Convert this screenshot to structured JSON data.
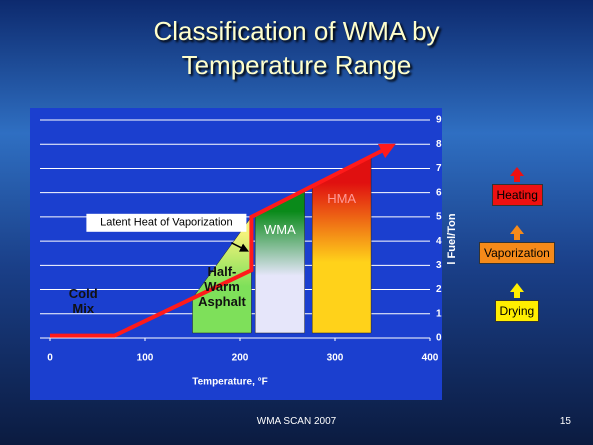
{
  "title": "Classification of WMA by Temperature Range",
  "footer": "WMA SCAN 2007",
  "page_number": "15",
  "chart_data": {
    "type": "line",
    "x_label": "Temperature, °F",
    "y_label": "l Fuel/Ton",
    "xlim": [
      0,
      400
    ],
    "xticks": [
      0,
      100,
      200,
      300,
      400
    ],
    "ylim": [
      0,
      9
    ],
    "yticks": [
      0,
      1,
      2,
      3,
      4,
      5,
      6,
      7,
      8,
      9
    ],
    "grid": true,
    "series": [
      {
        "color": "#ff1a1a",
        "x": [
          0,
          68,
          212,
          212,
          358
        ],
        "values": [
          0.1,
          0.1,
          2.8,
          5.0,
          7.9
        ]
      }
    ],
    "regions": [
      {
        "label": "Cold Mix",
        "x": [
          0,
          70
        ]
      },
      {
        "label": "Half-Warm Asphalt",
        "x": [
          150,
          212
        ],
        "colors": [
          "#f2f27a",
          "#7ee05a"
        ]
      },
      {
        "label": "WMA",
        "x": [
          216,
          268
        ],
        "colors": [
          "#0a8a1a",
          "#e6e6fa"
        ]
      },
      {
        "label": "HMA",
        "x": [
          276,
          338
        ],
        "colors": [
          "#e01010",
          "#ffd21a"
        ]
      }
    ],
    "annotation": {
      "text": "Latent Heat of Vaporization",
      "x": 212,
      "y": 3.6
    },
    "stages": [
      {
        "label": "Heating",
        "color": "#ee1111"
      },
      {
        "label": "Vaporization",
        "color": "#f58a1a"
      },
      {
        "label": "Drying",
        "color": "#ffee00"
      }
    ]
  }
}
